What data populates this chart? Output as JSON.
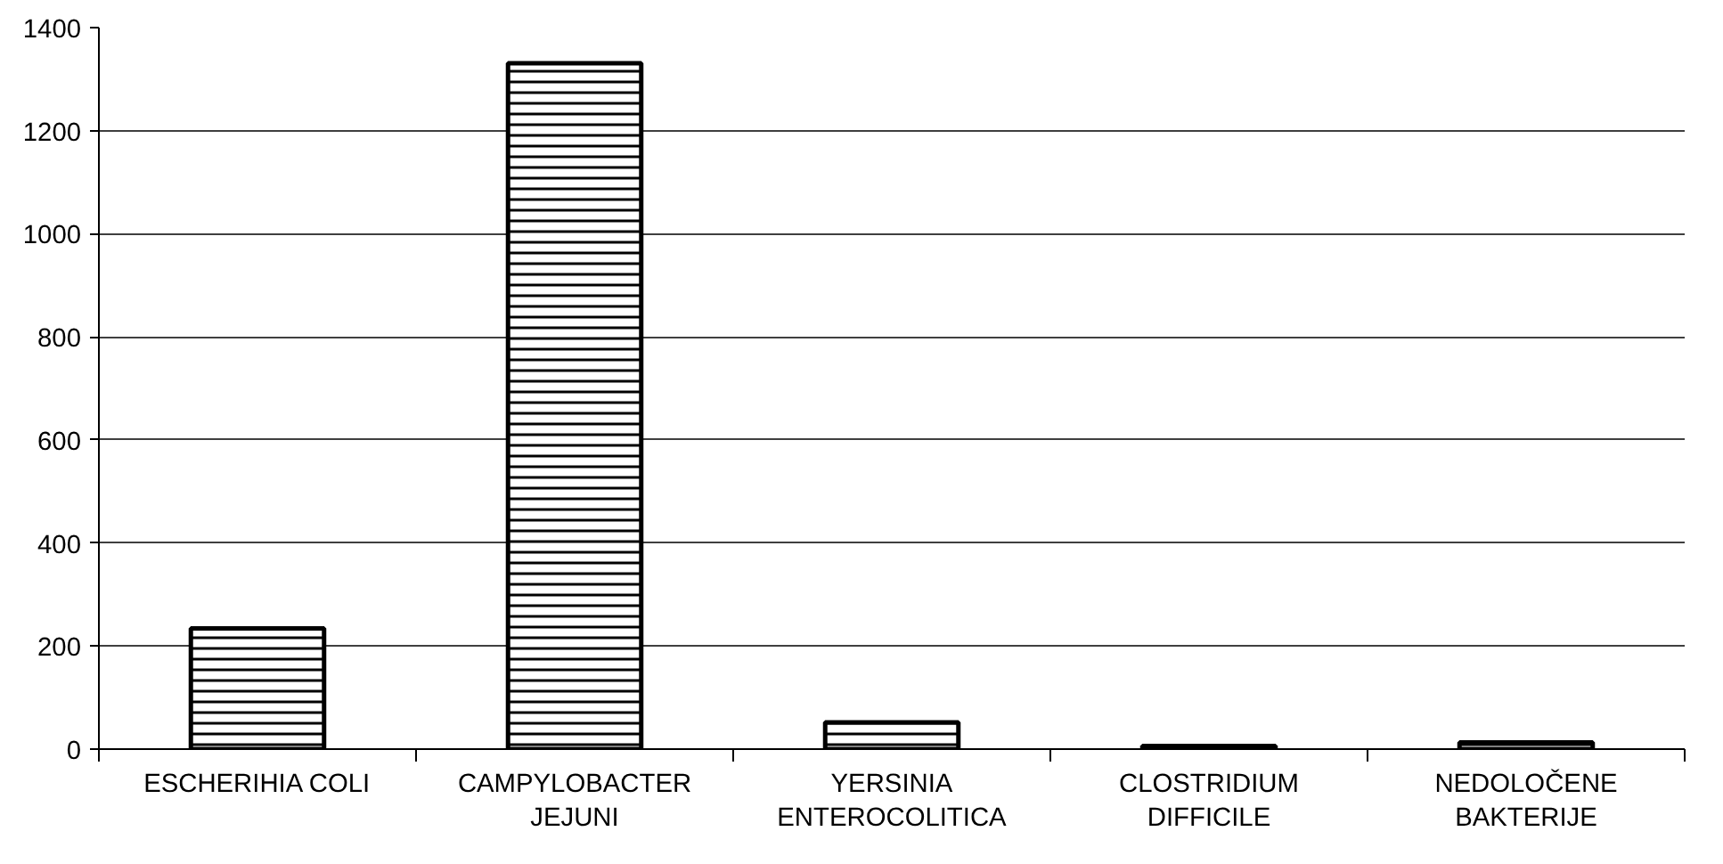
{
  "chart_data": {
    "type": "bar",
    "categories": [
      "ESCHERIHIA COLI",
      "CAMPYLOBACTER\nJEJUNI",
      "YERSINIA\nENTEROCOLITICA",
      "CLOSTRIDIUM\nDIFFICILE",
      "NEDOLOČENE\nBAKTERIJE"
    ],
    "values": [
      234,
      1331,
      52,
      6,
      13
    ],
    "color": "#000000",
    "ylim": [
      0,
      1400
    ],
    "yticks": [
      0,
      200,
      400,
      600,
      800,
      1000,
      1200,
      1400
    ],
    "grid": "y"
  }
}
